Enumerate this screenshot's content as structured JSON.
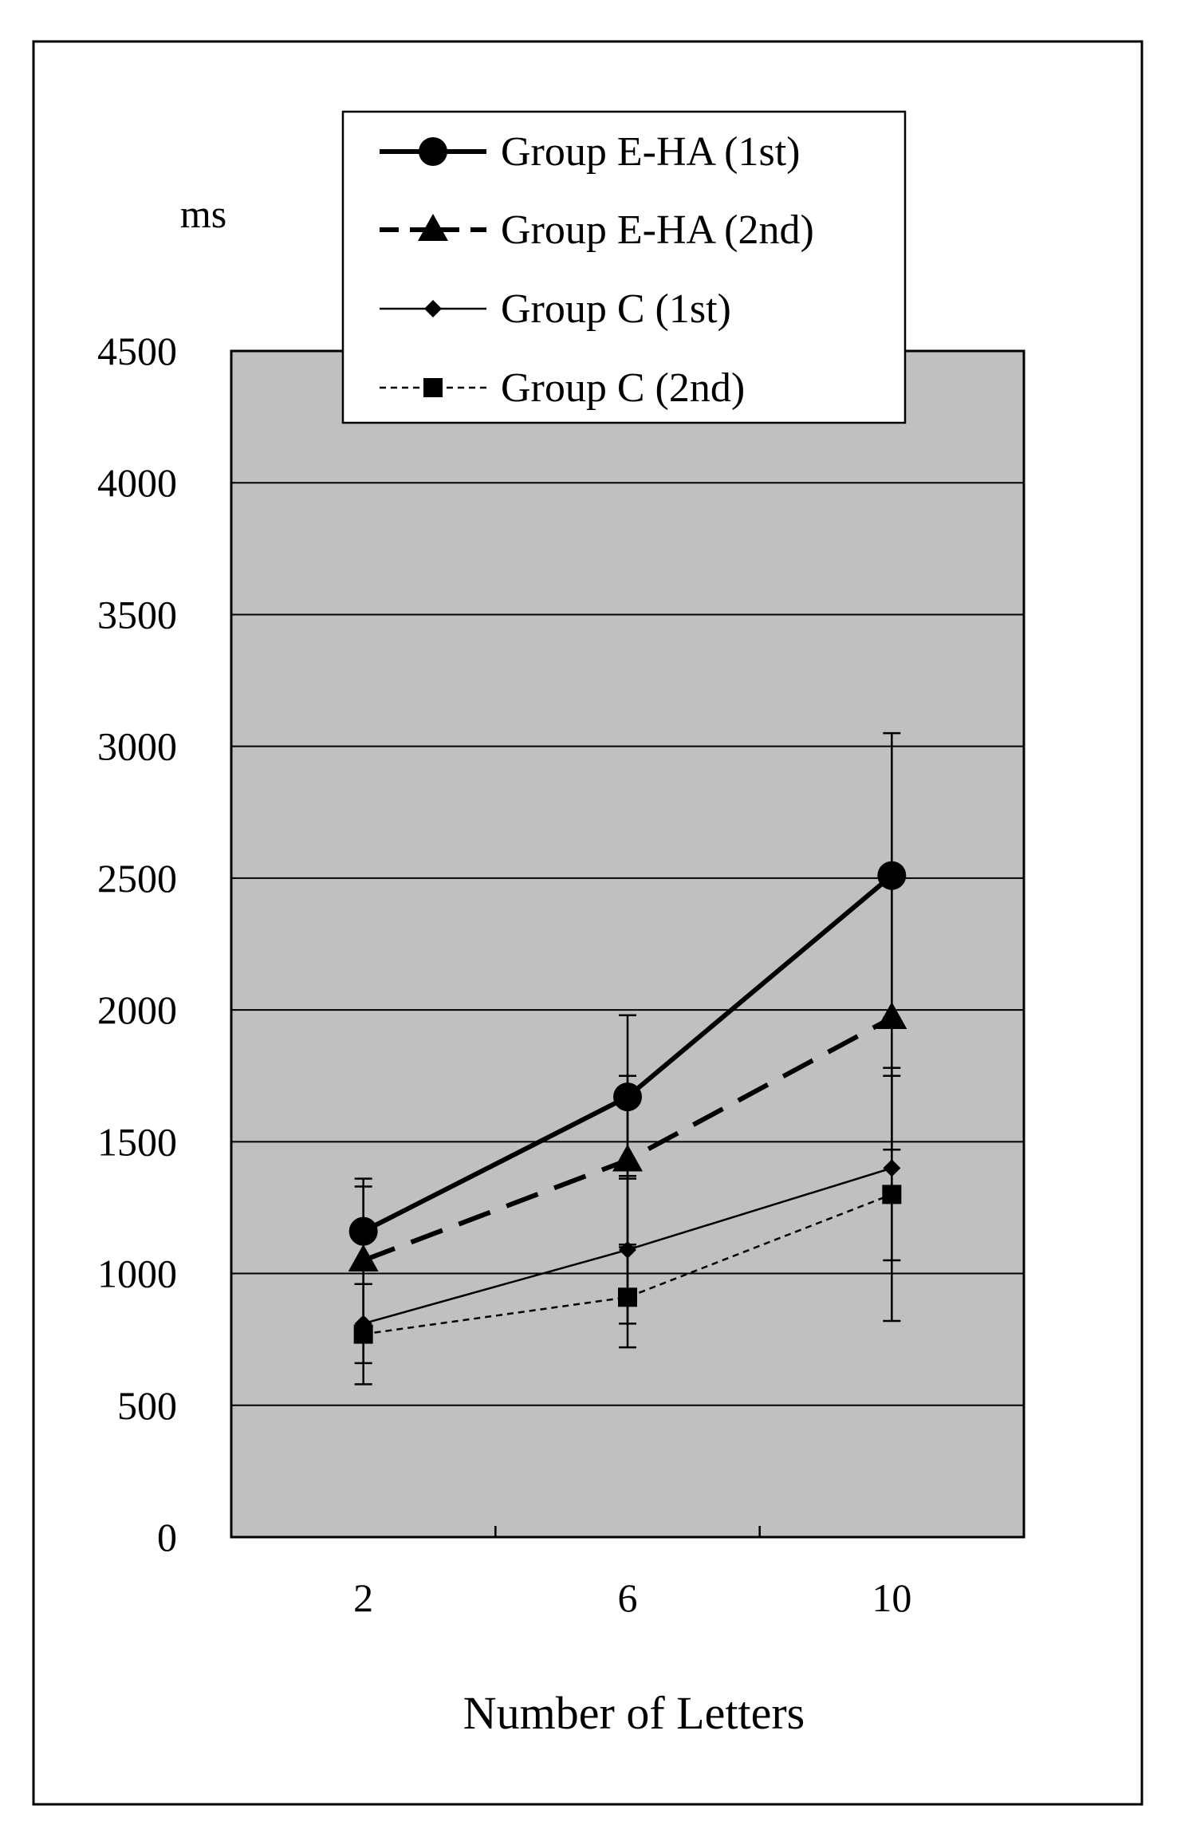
{
  "chart_data": {
    "type": "line",
    "title": "",
    "xlabel": "Number of Letters",
    "ylabel": "ms",
    "categories": [
      "2",
      "6",
      "10"
    ],
    "x": [
      2,
      6,
      10
    ],
    "ylim": [
      0,
      4500
    ],
    "yticks": [
      0,
      500,
      1000,
      1500,
      2000,
      2500,
      3000,
      3500,
      4000,
      4500
    ],
    "ytick_labels": [
      "0",
      "500",
      "1000",
      "1500",
      "2000",
      "2500",
      "3000",
      "3500",
      "4000",
      "4500"
    ],
    "grid": true,
    "legend_position": "top",
    "plot_background": "#c0c0c0",
    "series": [
      {
        "name": "Group E-HA (1st)",
        "values": [
          1160,
          1670,
          2510
        ],
        "error": [
          200,
          310,
          540
        ],
        "marker": "circle",
        "line_style": "solid-thick",
        "color": "#000000"
      },
      {
        "name": "Group E-HA (2nd)",
        "values": [
          1050,
          1430,
          1970
        ],
        "error": [
          280,
          320,
          500
        ],
        "marker": "triangle",
        "line_style": "dashed-thick",
        "color": "#000000"
      },
      {
        "name": "Group C (1st)",
        "values": [
          810,
          1090,
          1400
        ],
        "error": [
          150,
          280,
          350
        ],
        "marker": "diamond",
        "line_style": "solid-thin",
        "color": "#000000"
      },
      {
        "name": "Group C (2nd)",
        "values": [
          770,
          910,
          1300
        ],
        "error": [
          190,
          190,
          480
        ],
        "marker": "square",
        "line_style": "dotted-thin",
        "color": "#000000"
      }
    ]
  }
}
